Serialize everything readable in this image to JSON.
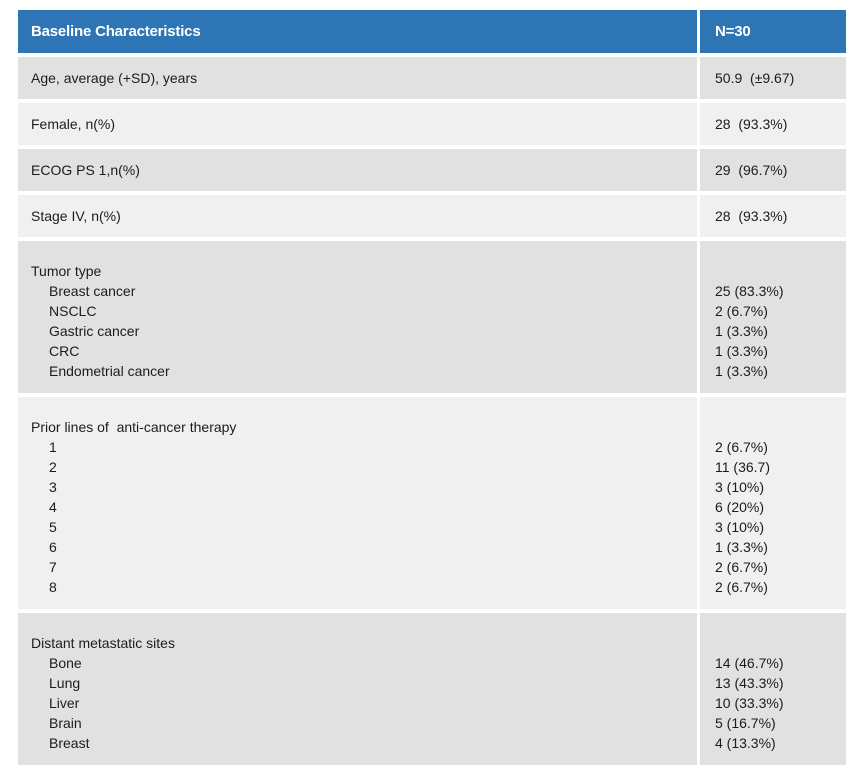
{
  "colors": {
    "header_bg": "#2E75B6",
    "header_text": "#FFFFFF",
    "row_dark": "#E1E1E1",
    "row_light": "#F0F0F0",
    "text": "#1C1C1C"
  },
  "table": {
    "header": {
      "label": "Baseline Characteristics",
      "value": "N=30"
    },
    "rows": [
      {
        "label": "Age, average (+SD), years",
        "value": "50.9  (±9.67)"
      },
      {
        "label": "Female, n(%)",
        "value": "28  (93.3%)"
      },
      {
        "label": "ECOG PS 1,n(%)",
        "value": "29  (96.7%)"
      },
      {
        "label": "Stage IV, n(%)",
        "value": "28  (93.3%)"
      },
      {
        "label": "Tumor type",
        "items": [
          {
            "label": "Breast cancer",
            "value": "25 (83.3%)"
          },
          {
            "label": "NSCLC",
            "value": "2 (6.7%)"
          },
          {
            "label": "Gastric cancer",
            "value": "1 (3.3%)"
          },
          {
            "label": "CRC",
            "value": "1 (3.3%)"
          },
          {
            "label": "Endometrial cancer",
            "value": "1 (3.3%)"
          }
        ]
      },
      {
        "label": "Prior lines of  anti-cancer therapy",
        "items": [
          {
            "label": "1",
            "value": "2 (6.7%)"
          },
          {
            "label": "2",
            "value": "11 (36.7)"
          },
          {
            "label": "3",
            "value": "3 (10%)"
          },
          {
            "label": "4",
            "value": "6 (20%)"
          },
          {
            "label": "5",
            "value": "3 (10%)"
          },
          {
            "label": "6",
            "value": "1 (3.3%)"
          },
          {
            "label": "7",
            "value": "2 (6.7%)"
          },
          {
            "label": "8",
            "value": "2 (6.7%)"
          }
        ]
      },
      {
        "label": "Distant metastatic sites",
        "items": [
          {
            "label": "Bone",
            "value": "14 (46.7%)"
          },
          {
            "label": "Lung",
            "value": "13 (43.3%)"
          },
          {
            "label": "Liver",
            "value": "10 (33.3%)"
          },
          {
            "label": "Brain",
            "value": "5 (16.7%)"
          },
          {
            "label": "Breast",
            "value": "4 (13.3%)"
          }
        ]
      }
    ]
  }
}
